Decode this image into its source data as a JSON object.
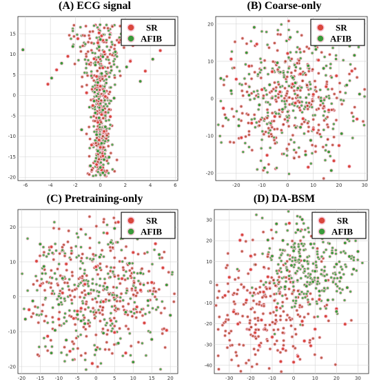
{
  "chart_data": [
    {
      "type": "scatter",
      "title": "(A) ECG signal",
      "xlabel": "",
      "ylabel": "",
      "xlim": [
        -6.6,
        6.2
      ],
      "ylim": [
        -20.8,
        19.2
      ],
      "xticks": [
        -6,
        -4,
        -2,
        0,
        2,
        4,
        6
      ],
      "yticks": [
        -20,
        -15,
        -10,
        -5,
        0,
        5,
        10,
        15
      ],
      "grid": true,
      "legend_position": "top-right",
      "layout_kind": "column",
      "series": [
        {
          "name": "SR",
          "color": "#d9473d",
          "values": [
            [
              0.1,
              14.5
            ],
            [
              -0.2,
              12.8
            ],
            [
              0.3,
              10.6
            ],
            [
              -0.5,
              8.9
            ],
            [
              0.2,
              6.7
            ],
            [
              -0.3,
              4.6
            ],
            [
              0.0,
              2.2
            ],
            [
              0.4,
              -0.3
            ],
            [
              -0.6,
              -2.5
            ],
            [
              0.1,
              -4.7
            ],
            [
              -0.2,
              -6.6
            ],
            [
              0.3,
              -8.8
            ],
            [
              -0.1,
              -10.9
            ],
            [
              0.0,
              -12.7
            ],
            [
              0.2,
              -14.8
            ],
            [
              -0.3,
              -16.9
            ],
            [
              0.1,
              -18.2
            ],
            [
              -1.8,
              13.8
            ],
            [
              -2.6,
              9.5
            ],
            [
              -3.5,
              6.2
            ],
            [
              -4.2,
              2.7
            ],
            [
              1.5,
              12.9
            ],
            [
              2.4,
              8.3
            ],
            [
              3.6,
              5.9
            ],
            [
              4.8,
              10.9
            ],
            [
              -0.1,
              15.2
            ],
            [
              0.2,
              13.4
            ],
            [
              -1.1,
              0.6
            ],
            [
              0.8,
              -5.2
            ],
            [
              -0.7,
              -12.1
            ]
          ]
        },
        {
          "name": "AFIB",
          "color": "#3a9a3a",
          "values": [
            [
              0.0,
              13.6
            ],
            [
              -0.1,
              11.8
            ],
            [
              0.2,
              9.4
            ],
            [
              -0.4,
              7.4
            ],
            [
              0.1,
              5.3
            ],
            [
              -0.2,
              3.1
            ],
            [
              0.3,
              1.0
            ],
            [
              -0.5,
              -1.4
            ],
            [
              0.2,
              -3.6
            ],
            [
              -0.1,
              -5.5
            ],
            [
              0.4,
              -7.7
            ],
            [
              -0.3,
              -9.6
            ],
            [
              0.1,
              -11.7
            ],
            [
              -0.2,
              -13.6
            ],
            [
              0.3,
              -15.7
            ],
            [
              0.0,
              -17.6
            ],
            [
              0.2,
              -18.9
            ],
            [
              -2.2,
              11.9
            ],
            [
              -3.1,
              7.8
            ],
            [
              -3.9,
              4.2
            ],
            [
              1.2,
              10.6
            ],
            [
              2.1,
              6.9
            ],
            [
              3.2,
              3.4
            ],
            [
              4.2,
              8.8
            ],
            [
              -0.4,
              -4.3
            ],
            [
              0.7,
              -15.1
            ],
            [
              -0.8,
              -17.2
            ],
            [
              -1.5,
              -8.4
            ],
            [
              1.1,
              -0.7
            ],
            [
              -6.2,
              11.1
            ]
          ]
        }
      ]
    },
    {
      "type": "scatter",
      "title": "(B) Coarse-only",
      "xlabel": "",
      "ylabel": "",
      "xlim": [
        -28,
        31
      ],
      "ylim": [
        -22,
        22
      ],
      "xticks": [
        -20,
        -10,
        0,
        10,
        20,
        30
      ],
      "yticks": [
        -20,
        -10,
        0,
        10,
        20
      ],
      "grid": true,
      "legend_position": "top-right",
      "layout_kind": "blob",
      "series": [
        {
          "name": "SR",
          "color": "#d9473d",
          "values": [
            [
              -20,
              5.2
            ],
            [
              -15,
              8.7
            ],
            [
              -10,
              2.4
            ],
            [
              -5,
              -4.8
            ],
            [
              0,
              12.1
            ],
            [
              5,
              6.6
            ],
            [
              10,
              -8.3
            ],
            [
              15,
              3.2
            ],
            [
              20,
              -12.6
            ],
            [
              25,
              7.4
            ],
            [
              -18,
              -10.5
            ],
            [
              -8,
              -15.2
            ],
            [
              8,
              -18.4
            ],
            [
              18,
              -16.7
            ],
            [
              22,
              14.8
            ],
            [
              -25,
              -2.6
            ],
            [
              3,
              -1.2
            ],
            [
              12,
              10.3
            ],
            [
              -12,
              14.6
            ],
            [
              27,
              -5.5
            ],
            [
              2,
              3.9
            ],
            [
              -3,
              1.8
            ],
            [
              6,
              -5.4
            ],
            [
              16,
              -3.1
            ],
            [
              -6,
              7.2
            ],
            [
              24,
              -18.2
            ],
            [
              -22,
              10.6
            ],
            [
              10,
              1.1
            ],
            [
              -14,
              -6.6
            ],
            [
              19,
              6.1
            ]
          ]
        },
        {
          "name": "AFIB",
          "color": "#3a9a3a",
          "values": [
            [
              -22,
              2.1
            ],
            [
              -16,
              12.3
            ],
            [
              -11,
              -1.7
            ],
            [
              -4,
              9.6
            ],
            [
              1,
              16.4
            ],
            [
              4,
              2.8
            ],
            [
              9,
              -11.2
            ],
            [
              14,
              8.1
            ],
            [
              21,
              -9.4
            ],
            [
              26,
              11.6
            ],
            [
              -19,
              -7.3
            ],
            [
              -9,
              -18.6
            ],
            [
              7,
              -15.1
            ],
            [
              17,
              -19.3
            ],
            [
              23,
              3.6
            ],
            [
              -26,
              5.4
            ],
            [
              2,
              5.6
            ],
            [
              11,
              13.2
            ],
            [
              -13,
              19.1
            ],
            [
              28,
              1.2
            ],
            [
              3,
              4.2
            ],
            [
              -2,
              -2.9
            ],
            [
              5,
              -7.7
            ],
            [
              13,
              -0.6
            ],
            [
              -7,
              3.7
            ],
            [
              20,
              17.8
            ],
            [
              -24,
              -5.2
            ],
            [
              8,
              8.8
            ],
            [
              -15,
              0.9
            ],
            [
              16,
              -14.3
            ]
          ]
        }
      ]
    },
    {
      "type": "scatter",
      "title": "(C) Pretraining-only",
      "xlabel": "",
      "ylabel": "",
      "xlim": [
        -21,
        22
      ],
      "ylim": [
        -22,
        25
      ],
      "xticks": [
        -20,
        -15,
        -10,
        -5,
        0,
        5,
        10,
        15,
        20
      ],
      "yticks": [
        -20,
        -10,
        0,
        10,
        20
      ],
      "grid": true,
      "legend_position": "top-right",
      "layout_kind": "blob",
      "series": [
        {
          "name": "SR",
          "color": "#d9473d",
          "values": [
            [
              -15,
              3.2
            ],
            [
              -10,
              -6.4
            ],
            [
              -5,
              -4.1
            ],
            [
              0,
              8.6
            ],
            [
              5,
              -10.2
            ],
            [
              10,
              12.7
            ],
            [
              15,
              4.1
            ],
            [
              -12,
              14.3
            ],
            [
              -7,
              -15.6
            ],
            [
              3,
              18.2
            ],
            [
              8,
              -16.1
            ],
            [
              13,
              -7.5
            ],
            [
              18,
              8.3
            ],
            [
              -18,
              -3.7
            ],
            [
              -3,
              3.6
            ],
            [
              2,
              -1.4
            ],
            [
              7,
              5.2
            ],
            [
              -8,
              9.4
            ],
            [
              11,
              -2.9
            ],
            [
              -13,
              -11.3
            ],
            [
              -6,
              -6.2
            ],
            [
              -4,
              -3.3
            ],
            [
              16,
              15.2
            ],
            [
              -1,
              -19.1
            ],
            [
              19,
              -9.6
            ],
            [
              -16,
              10.2
            ],
            [
              6,
              21.4
            ],
            [
              -9,
              1.1
            ],
            [
              4,
              -6.8
            ],
            [
              12,
              1.9
            ]
          ]
        },
        {
          "name": "AFIB",
          "color": "#3a9a3a",
          "values": [
            [
              -17,
              -1.2
            ],
            [
              -11,
              -9.6
            ],
            [
              -4,
              -6.9
            ],
            [
              1,
              11.4
            ],
            [
              6,
              -13.3
            ],
            [
              9,
              9.6
            ],
            [
              14,
              -1.1
            ],
            [
              -14,
              8.7
            ],
            [
              -8,
              -12.4
            ],
            [
              4,
              15.6
            ],
            [
              10,
              -18.7
            ],
            [
              15,
              -12.2
            ],
            [
              19,
              3.4
            ],
            [
              -19,
              -6.4
            ],
            [
              -2,
              0.9
            ],
            [
              3,
              2.7
            ],
            [
              8,
              -4.4
            ],
            [
              -9,
              5.3
            ],
            [
              12,
              6.8
            ],
            [
              -12,
              -16.1
            ],
            [
              -5,
              -5.1
            ],
            [
              -3,
              -7.7
            ],
            [
              17,
              12.1
            ],
            [
              0,
              -15.2
            ],
            [
              20,
              -5.3
            ],
            [
              -15,
              15.1
            ],
            [
              5,
              19.6
            ],
            [
              -10,
              -2.2
            ],
            [
              2,
              -10.4
            ],
            [
              11,
              22.1
            ]
          ]
        }
      ]
    },
    {
      "type": "scatter",
      "title": "(D) DA-BSM",
      "xlabel": "",
      "ylabel": "",
      "xlim": [
        -37,
        35
      ],
      "ylim": [
        -44,
        35
      ],
      "xticks": [
        -30,
        -20,
        -10,
        0,
        10,
        20,
        30
      ],
      "yticks": [
        -40,
        -30,
        -20,
        -10,
        0,
        10,
        20,
        30
      ],
      "grid": true,
      "legend_position": "top-right",
      "layout_kind": "split",
      "series": [
        {
          "name": "SR",
          "color": "#d9473d",
          "values": [
            [
              -25,
              20.2
            ],
            [
              -20,
              12.6
            ],
            [
              -30,
              2.4
            ],
            [
              -22,
              -8.6
            ],
            [
              -15,
              -18.2
            ],
            [
              -10,
              -26.4
            ],
            [
              -5,
              -32.1
            ],
            [
              0,
              -38.5
            ],
            [
              5,
              -28.3
            ],
            [
              10,
              -22.6
            ],
            [
              15,
              -16.4
            ],
            [
              20,
              -12.8
            ],
            [
              -28,
              -14.2
            ],
            [
              -18,
              -24.3
            ],
            [
              -8,
              -12.1
            ],
            [
              -12,
              2.6
            ],
            [
              -2,
              28.4
            ],
            [
              18,
              22.6
            ],
            [
              -32,
              -6.4
            ],
            [
              2,
              -35.7
            ],
            [
              -24,
              22.8
            ],
            [
              -26,
              -20.1
            ],
            [
              8,
              -30.6
            ],
            [
              -14,
              -4.7
            ],
            [
              12,
              -8.3
            ],
            [
              24,
              -20.2
            ],
            [
              -6,
              -38.2
            ],
            [
              -20,
              6.1
            ],
            [
              4,
              -18.8
            ],
            [
              -16,
              -30.4
            ]
          ]
        },
        {
          "name": "AFIB",
          "color": "#3a9a3a",
          "values": [
            [
              0,
              15.1
            ],
            [
              5,
              10.4
            ],
            [
              10,
              5.3
            ],
            [
              15,
              0.8
            ],
            [
              20,
              8.7
            ],
            [
              25,
              -2.6
            ],
            [
              -5,
              20.1
            ],
            [
              -10,
              12.6
            ],
            [
              2,
              25.2
            ],
            [
              8,
              18.4
            ],
            [
              12,
              -4.3
            ],
            [
              18,
              14.1
            ],
            [
              22,
              2.2
            ],
            [
              28,
              6.3
            ],
            [
              -3,
              5.8
            ],
            [
              6,
              -1.9
            ],
            [
              14,
              22.7
            ],
            [
              -8,
              28.1
            ],
            [
              3,
              12.5
            ],
            [
              16,
              -8.6
            ],
            [
              -1,
              8.1
            ],
            [
              9,
              0.2
            ],
            [
              26,
              12.4
            ],
            [
              30,
              14.8
            ],
            [
              -12,
              20.3
            ],
            [
              4,
              30.2
            ],
            [
              20,
              -14.1
            ],
            [
              11,
              26.6
            ],
            [
              -4,
              -2.2
            ],
            [
              24,
              18.9
            ]
          ]
        }
      ]
    }
  ]
}
